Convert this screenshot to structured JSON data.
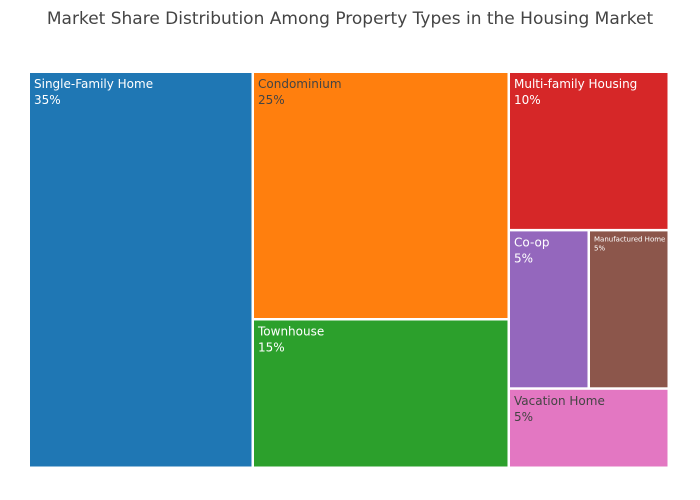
{
  "chart_data": {
    "type": "treemap",
    "title": "Market Share Distribution Among Property Types in the Housing Market",
    "unit": "%",
    "items": [
      {
        "label": "Single-Family Home",
        "value": 35,
        "value_label": "35%",
        "color": "#1f77b4",
        "text_color": "#ffffff"
      },
      {
        "label": "Condominium",
        "value": 25,
        "value_label": "25%",
        "color": "#ff7f0e",
        "text_color": "#444444"
      },
      {
        "label": "Townhouse",
        "value": 15,
        "value_label": "15%",
        "color": "#2ca02c",
        "text_color": "#ffffff"
      },
      {
        "label": "Multi-family Housing",
        "value": 10,
        "value_label": "10%",
        "color": "#d62728",
        "text_color": "#ffffff"
      },
      {
        "label": "Co-op",
        "value": 5,
        "value_label": "5%",
        "color": "#9467bd",
        "text_color": "#ffffff"
      },
      {
        "label": "Manufactured Home",
        "value": 5,
        "value_label": "5%",
        "color": "#8c564b",
        "text_color": "#ffffff"
      },
      {
        "label": "Vacation Home",
        "value": 5,
        "value_label": "5%",
        "color": "#e377c2",
        "text_color": "#444444"
      }
    ]
  }
}
